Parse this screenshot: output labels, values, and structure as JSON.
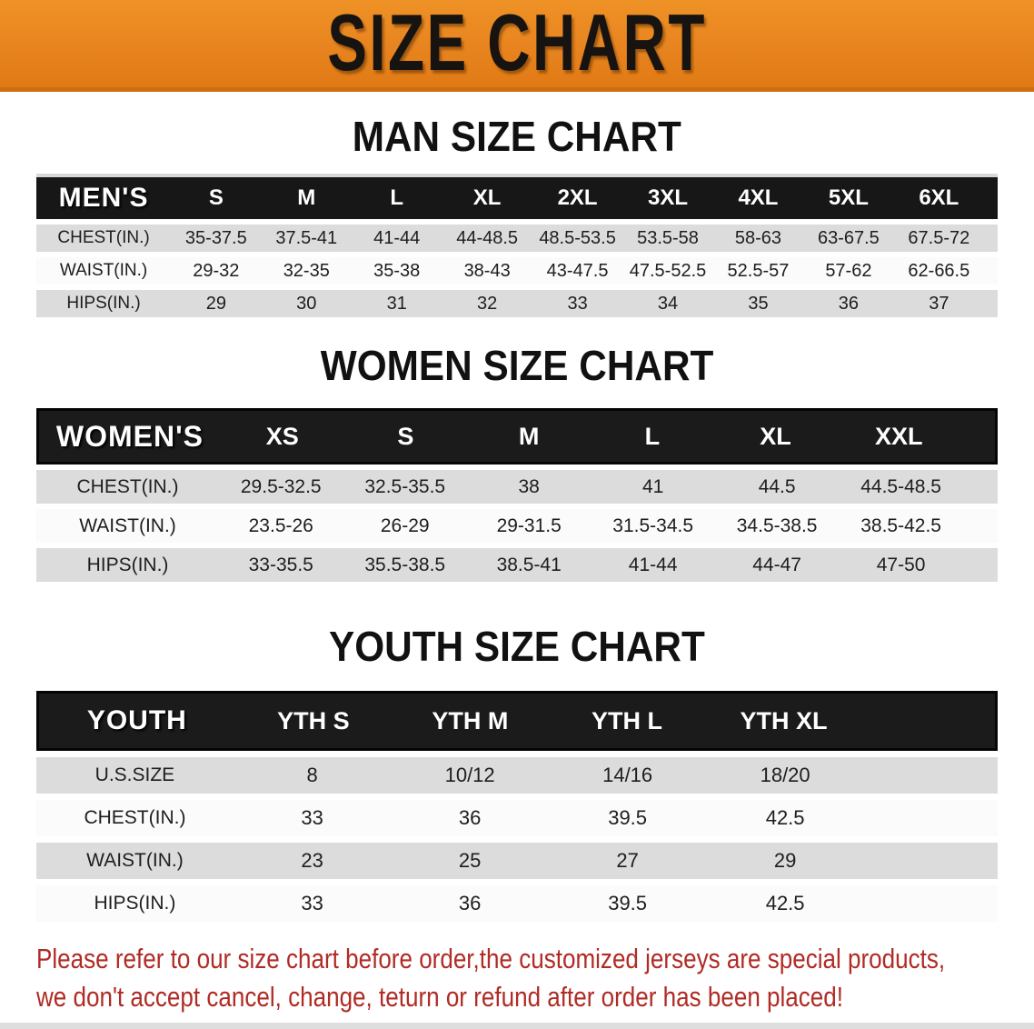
{
  "banner": {
    "title": "SIZE CHART",
    "bg_color": "#e8841f",
    "text_color": "#161310"
  },
  "sections": [
    {
      "title": "MAN SIZE CHART",
      "header_label": "MEN'S",
      "columns": [
        "S",
        "M",
        "L",
        "XL",
        "2XL",
        "3XL",
        "4XL",
        "5XL",
        "6XL"
      ],
      "rows": [
        {
          "label": "CHEST(IN.)",
          "values": [
            "35-37.5",
            "37.5-41",
            "41-44",
            "44-48.5",
            "48.5-53.5",
            "53.5-58",
            "58-63",
            "63-67.5",
            "67.5-72"
          ]
        },
        {
          "label": "WAIST(IN.)",
          "values": [
            "29-32",
            "32-35",
            "35-38",
            "38-43",
            "43-47.5",
            "47.5-52.5",
            "52.5-57",
            "57-62",
            "62-66.5"
          ]
        },
        {
          "label": "HIPS(IN.)",
          "values": [
            "29",
            "30",
            "31",
            "32",
            "33",
            "34",
            "35",
            "36",
            "37"
          ]
        }
      ]
    },
    {
      "title": "WOMEN SIZE CHART",
      "header_label": "WOMEN'S",
      "columns": [
        "XS",
        "S",
        "M",
        "L",
        "XL",
        "XXL"
      ],
      "rows": [
        {
          "label": "CHEST(IN.)",
          "values": [
            "29.5-32.5",
            "32.5-35.5",
            "38",
            "41",
            "44.5",
            "44.5-48.5"
          ]
        },
        {
          "label": "WAIST(IN.)",
          "values": [
            "23.5-26",
            "26-29",
            "29-31.5",
            "31.5-34.5",
            "34.5-38.5",
            "38.5-42.5"
          ]
        },
        {
          "label": "HIPS(IN.)",
          "values": [
            "33-35.5",
            "35.5-38.5",
            "38.5-41",
            "41-44",
            "44-47",
            "47-50"
          ]
        }
      ]
    },
    {
      "title": "YOUTH SIZE CHART",
      "header_label": "YOUTH",
      "columns": [
        "YTH S",
        "YTH M",
        "YTH L",
        "YTH XL"
      ],
      "rows": [
        {
          "label": "U.S.SIZE",
          "values": [
            "8",
            "10/12",
            "14/16",
            "18/20"
          ]
        },
        {
          "label": "CHEST(IN.)",
          "values": [
            "33",
            "36",
            "39.5",
            "42.5"
          ]
        },
        {
          "label": "WAIST(IN.)",
          "values": [
            "23",
            "25",
            "27",
            "29"
          ]
        },
        {
          "label": "HIPS(IN.)",
          "values": [
            "33",
            "36",
            "39.5",
            "42.5"
          ]
        }
      ]
    }
  ],
  "disclaimer": {
    "line1": "Please refer to our size chart before order,the customized jerseys are special products,",
    "line2": "we don't accept cancel, change, teturn or refund after order has been placed!",
    "color": "#b12b25"
  },
  "colors": {
    "banner_orange": "#e8841f",
    "header_black": "#1b1b1b",
    "row_shade_gray": "#dcdcdc",
    "disclaimer_red": "#b12b25"
  }
}
